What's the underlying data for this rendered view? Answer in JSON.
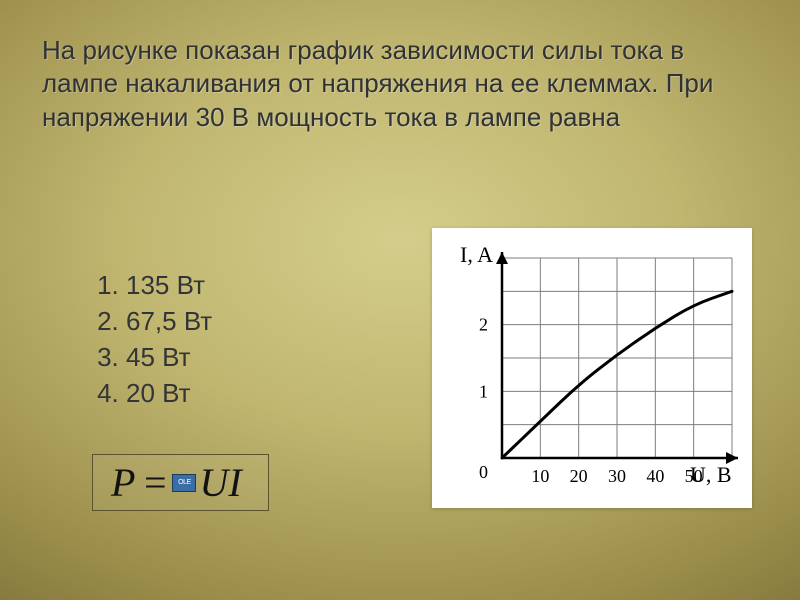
{
  "question_text": "На рисунке показан график зависимости силы тока в лампе накаливания от напряжения на ее клеммах. При напряжении 30 В мощность тока в лампе равна",
  "answers": [
    "135 Вт",
    "67,5 Вт",
    "45 Вт",
    "20 Вт"
  ],
  "formula": {
    "lhs": "P",
    "eq": "=",
    "rhs": "UI"
  },
  "ole_label": "OLE",
  "chart": {
    "type": "line",
    "y_label": "I, A",
    "x_label": "U, B",
    "x_ticks": [
      10,
      20,
      30,
      40,
      50
    ],
    "y_ticks": [
      1,
      2
    ],
    "xlim": [
      0,
      60
    ],
    "ylim": [
      0,
      3
    ],
    "x_step": 10,
    "y_step": 0.5,
    "grid_color": "#7d7d7d",
    "axis_color": "#000000",
    "curve_color": "#000000",
    "curve_width": 3,
    "background_color": "#ffffff",
    "label_fontsize": 22,
    "tick_fontsize": 18,
    "curve_points": [
      [
        0,
        0
      ],
      [
        10,
        0.55
      ],
      [
        20,
        1.1
      ],
      [
        30,
        1.55
      ],
      [
        40,
        1.95
      ],
      [
        50,
        2.3
      ],
      [
        60,
        2.5
      ]
    ]
  },
  "colors": {
    "text": "#303236",
    "bg_center": "#d4cd8b",
    "bg_edge": "#6d622f"
  }
}
